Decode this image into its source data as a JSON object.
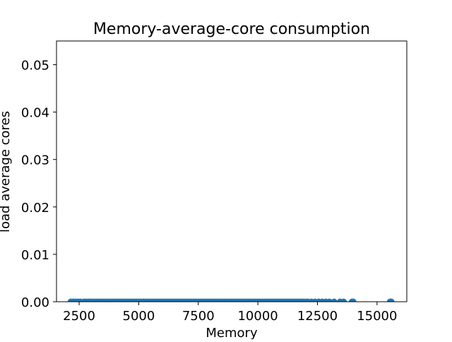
{
  "chart_data": {
    "type": "scatter",
    "title": "Memory-average-core consumption",
    "xlabel": "Memory",
    "ylabel": "load average cores",
    "xlim": [
      1550,
      16250
    ],
    "ylim": [
      0,
      0.055
    ],
    "xticks": [
      2500,
      5000,
      7500,
      10000,
      12500,
      15000
    ],
    "yticks": [
      0.0,
      0.01,
      0.02,
      0.03,
      0.04,
      0.05
    ],
    "xtick_labels": [
      "2500",
      "5000",
      "7500",
      "10000",
      "12500",
      "15000"
    ],
    "ytick_labels": [
      "0.00",
      "0.01",
      "0.02",
      "0.03",
      "0.04",
      "0.05"
    ],
    "grid": false,
    "legend": "none",
    "series": [
      {
        "color": "#1f77b4",
        "x": [
          2150,
          2250,
          2350,
          2450,
          2550,
          2700,
          2800,
          2900,
          3000,
          3100,
          3200,
          3300,
          3400,
          3500,
          3600,
          3700,
          3800,
          3900,
          4000,
          4100,
          4200,
          4300,
          4400,
          4500,
          4600,
          4700,
          4800,
          4900,
          5000,
          5100,
          5200,
          5300,
          5400,
          5500,
          5600,
          5700,
          5800,
          5900,
          6000,
          6100,
          6200,
          6300,
          6400,
          6500,
          6600,
          6700,
          6800,
          6900,
          7000,
          7100,
          7200,
          7300,
          7400,
          7500,
          7600,
          7700,
          7800,
          7900,
          8000,
          8100,
          8200,
          8300,
          8400,
          8500,
          8600,
          8700,
          8800,
          8900,
          9000,
          9100,
          9200,
          9300,
          9400,
          9500,
          9600,
          9700,
          9800,
          9900,
          10000,
          10100,
          10200,
          10300,
          10400,
          10500,
          10600,
          10700,
          10800,
          10900,
          11000,
          11100,
          11200,
          11300,
          11400,
          11500,
          11600,
          11700,
          11800,
          11900,
          12000,
          12100,
          12250,
          12400,
          12550,
          12700,
          12850,
          13000,
          13200,
          13450,
          13600,
          13950,
          14000,
          15550,
          15600
        ],
        "y": [
          0,
          0,
          0,
          0,
          0,
          0,
          0,
          0,
          0,
          0,
          0,
          0,
          0,
          0,
          0,
          0,
          0,
          0,
          0,
          0,
          0,
          0,
          0,
          0,
          0,
          0,
          0,
          0,
          0,
          0,
          0,
          0,
          0,
          0,
          0,
          0,
          0,
          0,
          0,
          0,
          0,
          0,
          0,
          0,
          0,
          0,
          0,
          0,
          0,
          0,
          0,
          0,
          0,
          0,
          0,
          0,
          0,
          0,
          0,
          0,
          0,
          0,
          0,
          0,
          0,
          0,
          0,
          0,
          0,
          0,
          0,
          0,
          0,
          0,
          0,
          0,
          0,
          0,
          0,
          0,
          0,
          0,
          0,
          0,
          0,
          0,
          0,
          0,
          0,
          0,
          0,
          0,
          0,
          0,
          0,
          0,
          0,
          0,
          0,
          0,
          0,
          0,
          0,
          0,
          0,
          0,
          0,
          0,
          0,
          0,
          0,
          0,
          0
        ]
      }
    ]
  }
}
